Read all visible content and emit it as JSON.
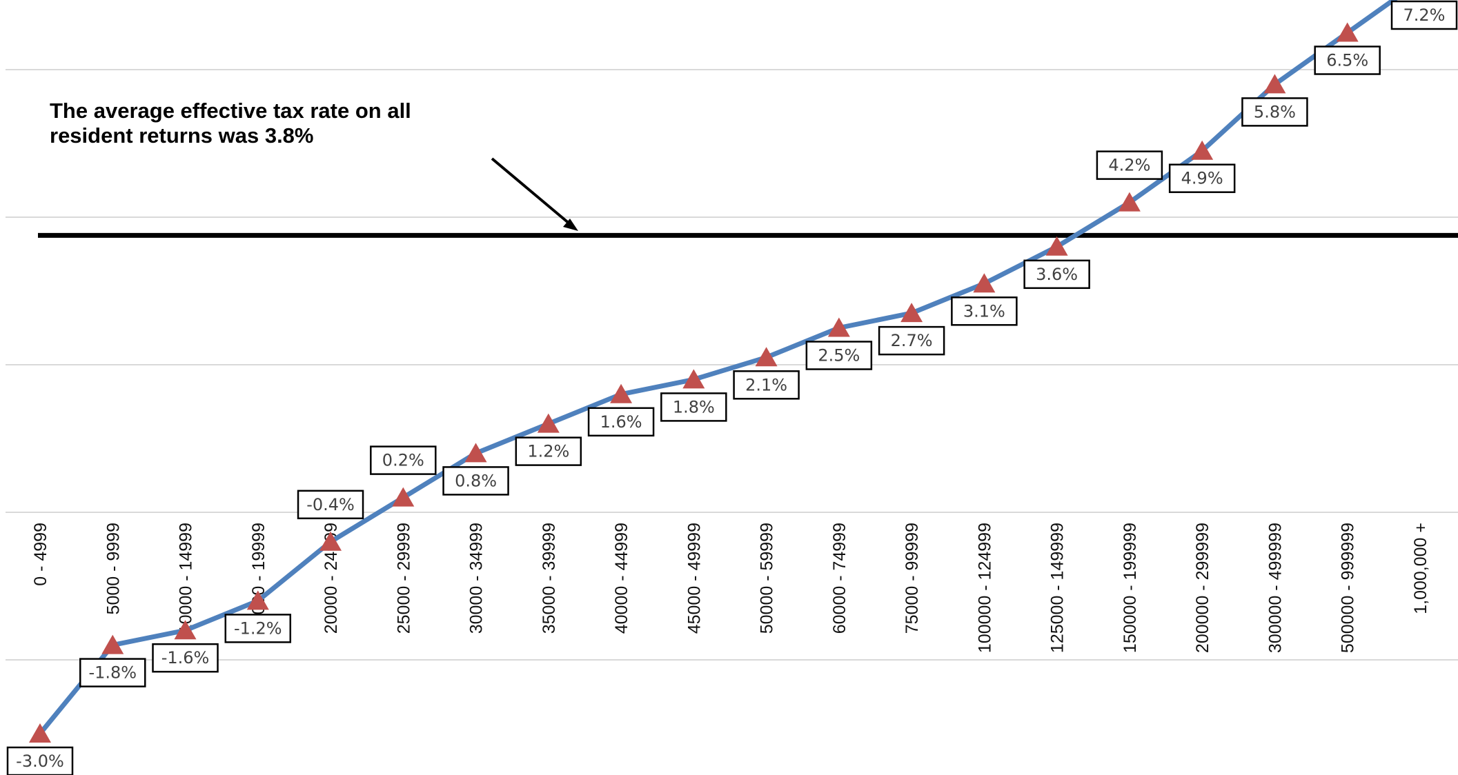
{
  "chart_data": {
    "type": "line",
    "title": "",
    "xlabel": "",
    "ylabel": "",
    "ylim": [
      -4,
      8
    ],
    "grid": true,
    "legend": "none",
    "categories": [
      "0 - 4999",
      "5000 - 9999",
      "10000 - 14999",
      "15000 - 19999",
      "20000 - 24999",
      "25000 - 29999",
      "30000 - 34999",
      "35000 - 39999",
      "40000 - 44999",
      "45000 - 49999",
      "50000 - 59999",
      "60000 - 74999",
      "75000 - 99999",
      "100000 - 124999",
      "125000 - 149999",
      "150000 - 199999",
      "200000 - 299999",
      "300000 - 499999",
      "500000 - 999999",
      "1,000,000 +"
    ],
    "values": [
      -3.0,
      -1.8,
      -1.6,
      -1.2,
      -0.4,
      0.2,
      0.8,
      1.2,
      1.6,
      1.8,
      2.1,
      2.5,
      2.7,
      3.1,
      3.6,
      4.2,
      4.9,
      5.8,
      6.5,
      7.2
    ],
    "data_labels": [
      "-3.0%",
      "-1.8%",
      "-1.6%",
      "-1.2%",
      "-0.4%",
      "0.2%",
      "0.8%",
      "1.2%",
      "1.6%",
      "1.8%",
      "2.1%",
      "2.5%",
      "2.7%",
      "3.1%",
      "3.6%",
      "4.2%",
      "4.9%",
      "5.8%",
      "6.5%",
      "7.2%"
    ],
    "reference_line": {
      "value": 3.8
    },
    "annotation": {
      "lines": [
        "The average effective tax rate on all",
        "resident returns was 3.8%"
      ]
    },
    "colors": {
      "line": "#4f81bd",
      "marker": "#c0504d",
      "reference": "#000000",
      "grid": "#d9d9d9"
    }
  }
}
